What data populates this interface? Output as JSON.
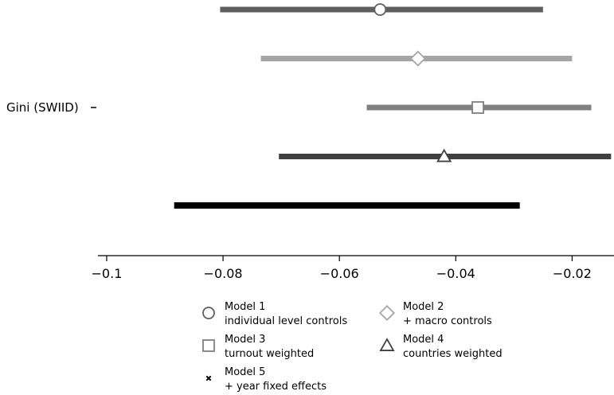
{
  "chart_data": {
    "type": "coefficient-plot",
    "title": "",
    "xlabel": "",
    "ylabel": "",
    "row_label": "Gini (SWIID)",
    "xlim": [
      -0.1015,
      -0.0128
    ],
    "ticks": [
      -0.1,
      -0.08,
      -0.06,
      -0.04,
      -0.02
    ],
    "tick_labels": [
      "−0.1",
      "−0.08",
      "−0.06",
      "−0.04",
      "−0.02"
    ],
    "grid": false,
    "legend_position": "bottom",
    "series": [
      {
        "name": "Model 1",
        "subtitle": "individual level controls",
        "estimate": -0.053,
        "lower": -0.0805,
        "upper": -0.025,
        "color": "#5f5f5f",
        "marker": "circle"
      },
      {
        "name": "Model 2",
        "subtitle": "+ macro controls",
        "estimate": -0.0465,
        "lower": -0.0735,
        "upper": -0.02,
        "color": "#a6a6a6",
        "marker": "diamond"
      },
      {
        "name": "Model 3",
        "subtitle": "turnout weighted",
        "estimate": -0.0362,
        "lower": -0.0553,
        "upper": -0.0167,
        "color": "#808080",
        "marker": "square"
      },
      {
        "name": "Model 4",
        "subtitle": "countries weighted",
        "estimate": -0.042,
        "lower": -0.0704,
        "upper": -0.0133,
        "color": "#404040",
        "marker": "triangle"
      },
      {
        "name": "Model 5",
        "subtitle": "+ year fixed effects",
        "estimate": -0.0588,
        "lower": -0.0884,
        "upper": -0.029,
        "color": "#000000",
        "marker": "cross"
      }
    ]
  }
}
